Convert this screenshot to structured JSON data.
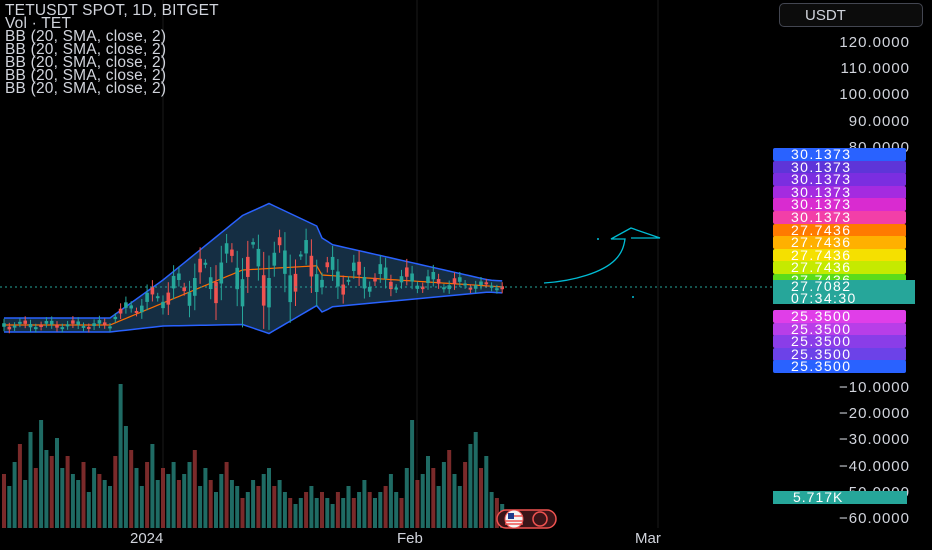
{
  "legend": {
    "title": "TETUSDT SPOT, 1D, BITGET",
    "volume": "Vol · TET",
    "indicators": [
      "BB (20, SMA, close, 2)",
      "BB (20, SMA, close, 2)",
      "BB (20, SMA, close, 2)",
      "BB (20, SMA, close, 2)",
      "BB (20, SMA, close, 2)"
    ]
  },
  "currency": "USDT",
  "price_axis": [
    "120.0000",
    "110.0000",
    "100.0000",
    "90.0000",
    "80.0000",
    "−10.0000",
    "−20.0000",
    "−30.0000",
    "−40.0000",
    "−50.0000",
    "−60.0000"
  ],
  "tags": [
    {
      "value": "30.1373",
      "color": "#2962ff"
    },
    {
      "value": "30.1373",
      "color": "#5e35d8"
    },
    {
      "value": "30.1373",
      "color": "#7b2ee0"
    },
    {
      "value": "30.1373",
      "color": "#a42be0"
    },
    {
      "value": "30.1373",
      "color": "#d92bd0"
    },
    {
      "value": "30.1373",
      "color": "#f23fa8"
    },
    {
      "value": "27.7436",
      "color": "#ff7a00"
    },
    {
      "value": "27.7436",
      "color": "#ffb000"
    },
    {
      "value": "27.7436",
      "color": "#f5e000"
    },
    {
      "value": "27.7436",
      "color": "#c5ea00"
    },
    {
      "value": "27.7436",
      "color": "#5bdc1a"
    },
    {
      "value": "25.3500",
      "color": "#e03ee8"
    },
    {
      "value": "25.3500",
      "color": "#b83ee8"
    },
    {
      "value": "25.3500",
      "color": "#8a3de8"
    },
    {
      "value": "25.3500",
      "color": "#6c42e8"
    },
    {
      "value": "25.3500",
      "color": "#2962ff"
    }
  ],
  "last_price": {
    "value": "27.7082",
    "countdown": "07:34:30"
  },
  "volume_last": "5.717K",
  "time_axis": [
    "2024",
    "Feb",
    "Mar"
  ],
  "colors": {
    "up": "#26a69a",
    "down": "#ef5350",
    "band": "#2962ff",
    "basis": "#ff6d00",
    "arrow": "#00bcd4"
  },
  "chart_data": {
    "type": "candlestick",
    "title": "TETUSDT SPOT, 1D, BITGET",
    "y_unit": "USDT",
    "last_close": 27.7082,
    "volume_series": [
      18,
      14,
      22,
      28,
      16,
      32,
      20,
      36,
      26,
      24,
      30,
      20,
      24,
      18,
      16,
      22,
      12,
      20,
      18,
      16,
      14,
      24,
      48,
      34,
      26,
      20,
      14,
      22,
      28,
      16,
      20,
      18,
      22,
      16,
      18,
      22,
      26,
      14,
      20,
      16,
      12,
      18,
      22,
      16,
      14,
      10,
      12,
      16,
      14,
      18,
      20,
      14,
      16,
      12,
      10,
      8,
      10,
      12,
      14,
      10,
      12,
      10,
      8,
      12,
      10,
      14,
      10,
      12,
      16,
      12,
      10,
      12,
      14,
      18,
      12,
      10,
      20,
      36,
      16,
      18,
      24,
      20,
      14,
      22,
      26,
      18,
      14,
      22,
      28,
      32,
      20,
      24,
      12,
      10,
      8
    ]
  }
}
